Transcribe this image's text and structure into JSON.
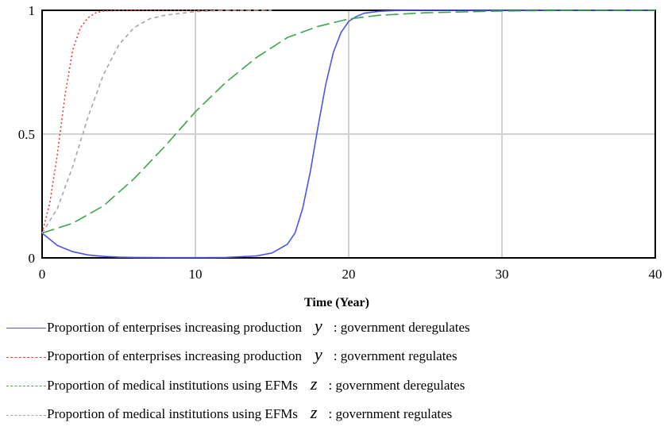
{
  "chart_data": {
    "type": "line",
    "title": "",
    "xlabel": "Time (Year)",
    "ylabel": "",
    "xlim": [
      0,
      40
    ],
    "ylim": [
      0,
      1
    ],
    "x_ticks": [
      "0",
      "10",
      "20",
      "30",
      "40"
    ],
    "y_ticks": [
      "0",
      "0.5",
      "1"
    ],
    "grid": true,
    "legend_position": "bottom",
    "series": [
      {
        "color": "#4a55e8",
        "dash": "solid",
        "legend": {
          "prefix": "Proportion of enterprises increasing production",
          "variable": "y",
          "suffix": ": government deregulates"
        },
        "x": [
          0,
          1,
          2,
          3,
          4,
          5,
          6,
          8,
          10,
          12,
          14,
          15,
          16,
          16.5,
          17,
          17.5,
          18,
          18.5,
          19,
          19.5,
          20,
          20.5,
          21,
          22,
          23,
          25,
          30,
          35,
          40
        ],
        "y": [
          0.1,
          0.05,
          0.025,
          0.012,
          0.006,
          0.003,
          0.002,
          0.001,
          0.001,
          0.002,
          0.008,
          0.02,
          0.055,
          0.1,
          0.2,
          0.35,
          0.53,
          0.7,
          0.83,
          0.91,
          0.955,
          0.975,
          0.988,
          0.996,
          0.999,
          1.0,
          1.0,
          1.0,
          1.0
        ]
      },
      {
        "color": "#e83a3a",
        "dash": "dotted",
        "legend": {
          "prefix": "Proportion of enterprises increasing production",
          "variable": "y",
          "suffix": ": government regulates"
        },
        "x": [
          0,
          0.5,
          1,
          1.5,
          2,
          2.5,
          3,
          3.5,
          4,
          5,
          6,
          8,
          10,
          15
        ],
        "y": [
          0.1,
          0.22,
          0.42,
          0.66,
          0.84,
          0.93,
          0.97,
          0.99,
          0.997,
          1.0,
          1.0,
          1.0,
          1.0,
          1.0
        ]
      },
      {
        "color": "#3aa64a",
        "dash": "longdash",
        "legend": {
          "prefix": "Proportion of medical institutions using EFMs",
          "variable": "z",
          "suffix": ": government deregulates"
        },
        "x": [
          0,
          2,
          4,
          6,
          8,
          10,
          12,
          14,
          16,
          18,
          20,
          22,
          25,
          30,
          35,
          40
        ],
        "y": [
          0.1,
          0.14,
          0.21,
          0.32,
          0.45,
          0.59,
          0.71,
          0.81,
          0.89,
          0.935,
          0.965,
          0.98,
          0.99,
          0.997,
          1.0,
          1.0
        ]
      },
      {
        "color": "#a6a6a6",
        "dash": "dashed",
        "legend": {
          "prefix": "Proportion of medical institutions using EFMs",
          "variable": "z",
          "suffix": ": government regulates"
        },
        "x": [
          0,
          1,
          2,
          3,
          4,
          5,
          6,
          7,
          8,
          10,
          12,
          15
        ],
        "y": [
          0.1,
          0.2,
          0.37,
          0.57,
          0.74,
          0.86,
          0.93,
          0.965,
          0.98,
          0.995,
          1.0,
          1.0
        ]
      }
    ]
  }
}
